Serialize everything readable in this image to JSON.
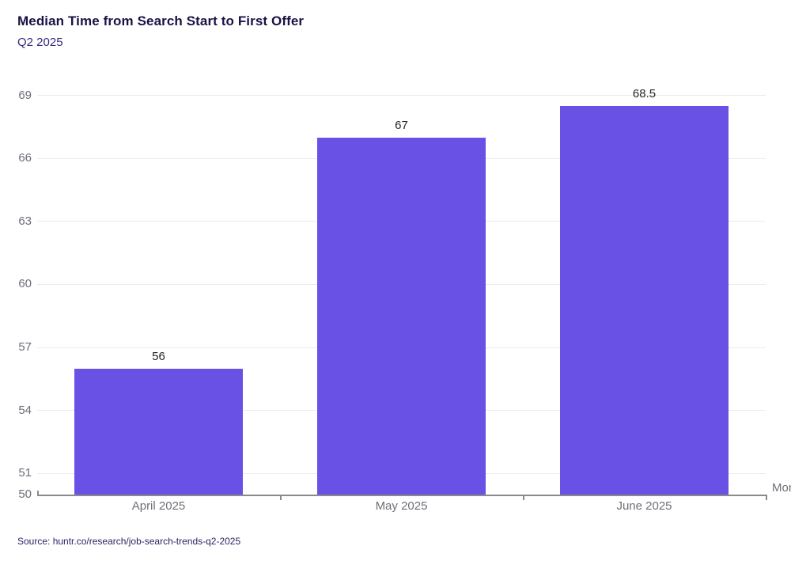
{
  "header": {
    "title": "Median Time from Search Start to First Offer",
    "subtitle": "Q2 2025"
  },
  "footer": {
    "source": "Source: huntr.co/research/job-search-trends-q2-2025"
  },
  "chart_data": {
    "type": "bar",
    "categories": [
      "April 2025",
      "May 2025",
      "June 2025"
    ],
    "values": [
      56,
      67,
      68.5
    ],
    "value_labels": [
      "56",
      "67",
      "68.5"
    ],
    "title": "Median Time from Search Start to First Offer",
    "subtitle": "Q2 2025",
    "xlabel": "Month",
    "ylabel": "",
    "ylim": [
      50,
      69
    ],
    "yticks": [
      50,
      51,
      54,
      57,
      60,
      63,
      66,
      69
    ],
    "grid": true,
    "legend": "none",
    "colors": {
      "bar": "#6a51e6",
      "gridline": "#eaeaf0",
      "axis_line": "#8a8a8a",
      "tick_label": "#6e6e78",
      "value_label": "#262626",
      "title": "#1b1144",
      "subtitle": "#352a7d",
      "source": "#2b2366",
      "background": "#ffffff"
    }
  }
}
